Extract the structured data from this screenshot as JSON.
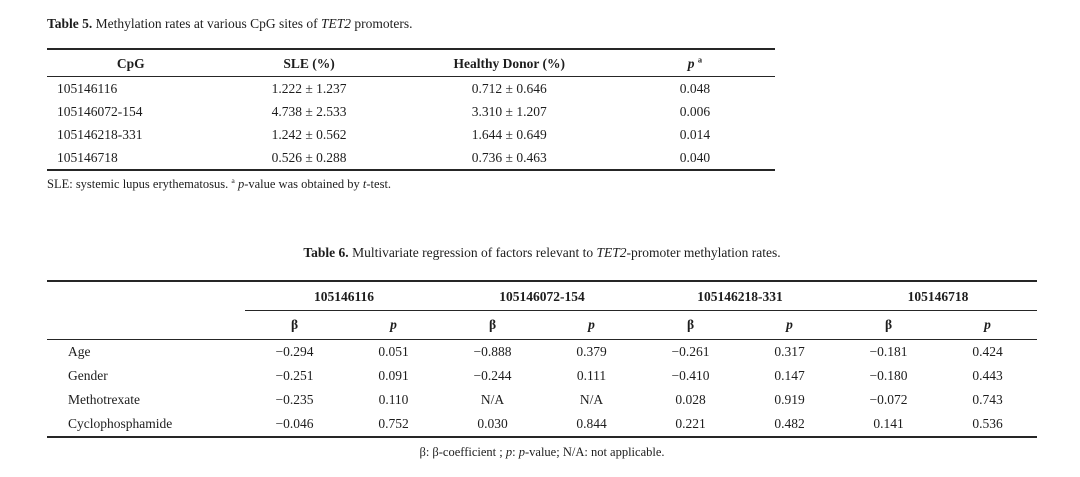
{
  "page": {
    "background": "#ffffff",
    "ink": "#1d1d1d",
    "rule_color": "#262626"
  },
  "table5": {
    "caption": {
      "label": "Table 5.",
      "before_italic": " Methylation rates at various CpG sites of ",
      "italic": "TET2",
      "after_italic": " promoters."
    },
    "columns": [
      "CpG",
      "SLE (%)",
      "Healthy Donor (%)"
    ],
    "p_column": {
      "base": "p",
      "sup": "a"
    },
    "rows": [
      {
        "cpg": "105146116",
        "sle": "1.222 ± 1.237",
        "healthy": "0.712 ± 0.646",
        "p": "0.048"
      },
      {
        "cpg": "105146072-154",
        "sle": "4.738 ± 2.533",
        "healthy": "3.310 ± 1.207",
        "p": "0.006"
      },
      {
        "cpg": "105146218-331",
        "sle": "1.242 ± 0.562",
        "healthy": "1.644 ± 0.649",
        "p": "0.014"
      },
      {
        "cpg": "105146718",
        "sle": "0.526 ± 0.288",
        "healthy": "0.736 ± 0.463",
        "p": "0.040"
      }
    ],
    "footnote": {
      "part1": "SLE: systemic lupus erythematosus. ",
      "sup": "a",
      "italic1": "p",
      "part2": "-value was obtained by ",
      "italic2": "t",
      "part3": "-test."
    }
  },
  "table6": {
    "caption": {
      "label": "Table 6.",
      "before_italic": " Multivariate regression of factors relevant to ",
      "italic": "TET2",
      "after_italic": "-promoter methylation rates."
    },
    "groups": [
      "105146116",
      "105146072-154",
      "105146218-331",
      "105146718"
    ],
    "subheaders": {
      "beta": "β",
      "p": "p"
    },
    "rows": [
      {
        "label": "Age",
        "values": [
          "−0.294",
          "0.051",
          "−0.888",
          "0.379",
          "−0.261",
          "0.317",
          "−0.181",
          "0.424"
        ]
      },
      {
        "label": "Gender",
        "values": [
          "−0.251",
          "0.091",
          "−0.244",
          "0.111",
          "−0.410",
          "0.147",
          "−0.180",
          "0.443"
        ]
      },
      {
        "label": "Methotrexate",
        "values": [
          "−0.235",
          "0.110",
          "N/A",
          "N/A",
          "0.028",
          "0.919",
          "−0.072",
          "0.743"
        ]
      },
      {
        "label": "Cyclophosphamide",
        "values": [
          "−0.046",
          "0.752",
          "0.030",
          "0.844",
          "0.221",
          "0.482",
          "0.141",
          "0.536"
        ]
      }
    ],
    "footnote": {
      "part1": "β: β-coefficient ; ",
      "italic1": "p",
      "part2": ": ",
      "italic2": "p",
      "part3": "-value; N/A: not applicable."
    }
  }
}
